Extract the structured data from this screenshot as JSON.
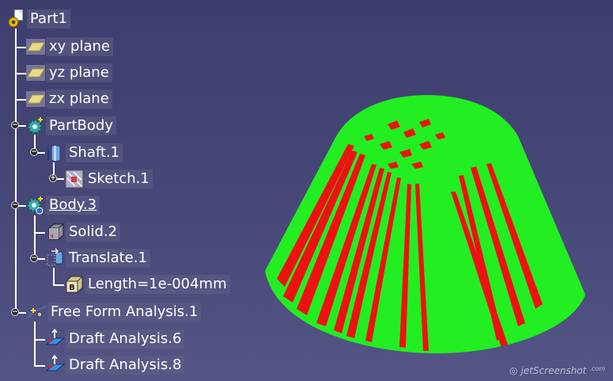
{
  "tree": {
    "root": {
      "label": "Part1",
      "icon": "part-icon"
    },
    "planes": [
      {
        "label": "xy plane",
        "icon": "plane-icon"
      },
      {
        "label": "yz plane",
        "icon": "plane-icon"
      },
      {
        "label": "zx plane",
        "icon": "plane-icon"
      }
    ],
    "partbody": {
      "label": "PartBody",
      "icon": "body-gear-icon"
    },
    "shaft": {
      "label": "Shaft.1",
      "icon": "shaft-icon"
    },
    "sketch": {
      "label": "Sketch.1",
      "icon": "sketch-icon"
    },
    "body3": {
      "label": "Body.3",
      "icon": "body-gear-icon"
    },
    "solid": {
      "label": "Solid.2",
      "icon": "solid-icon"
    },
    "translate": {
      "label": "Translate.1",
      "icon": "translate-icon"
    },
    "length": {
      "label": "Length=1e-004mm",
      "icon": "parameter-icon"
    },
    "ffa": {
      "label": "Free Form Analysis.1",
      "icon": "analysis-icon"
    },
    "draft6": {
      "label": "Draft Analysis.6",
      "icon": "draft-analysis-icon"
    },
    "draft8": {
      "label": "Draft Analysis.8",
      "icon": "draft-analysis-icon"
    }
  },
  "viewport": {
    "colors": {
      "pass": "#22ee22",
      "fail": "#ee1111"
    }
  },
  "watermark": {
    "text": "jetScreenshot",
    "suffix": ".com"
  }
}
